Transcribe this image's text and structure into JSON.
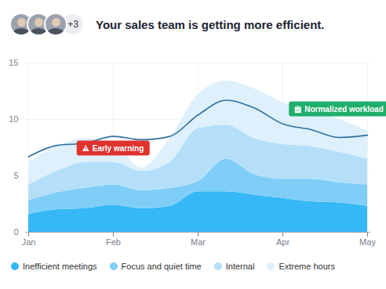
{
  "chart_data": {
    "type": "area",
    "title": "Your sales team is getting more efficient.",
    "badge": "+3",
    "stacked": true,
    "grid": true,
    "categories": [
      "Jan",
      null,
      null,
      "Feb",
      null,
      null,
      "Mar",
      null,
      null,
      "Apr",
      null,
      null,
      "May"
    ],
    "ylim": [
      0,
      15
    ],
    "yticks": [
      0,
      5,
      10,
      15
    ],
    "series": [
      {
        "name": "Inefficient meetings",
        "color": "#35b8f5",
        "values": [
          1.6,
          2.0,
          2.1,
          2.4,
          2.1,
          2.3,
          3.6,
          3.6,
          3.3,
          3.0,
          2.7,
          2.6,
          2.3
        ]
      },
      {
        "name": "Focus and quiet time",
        "color": "#7fcef7",
        "values": [
          1.2,
          1.5,
          1.8,
          1.8,
          1.6,
          1.6,
          0.9,
          2.9,
          1.8,
          1.7,
          2.0,
          1.8,
          1.9
        ]
      },
      {
        "name": "Internal",
        "color": "#b5dff9",
        "values": [
          1.4,
          1.9,
          2.3,
          2.0,
          1.7,
          2.3,
          4.7,
          3.0,
          3.2,
          3.1,
          2.9,
          2.7,
          2.3
        ]
      },
      {
        "name": "Extreme hours",
        "color": "#ddf0fc",
        "values": [
          2.0,
          2.2,
          2.1,
          1.7,
          0.3,
          2.1,
          3.0,
          3.9,
          4.4,
          3.7,
          3.3,
          2.9,
          2.5
        ]
      },
      {
        "type": "line",
        "color": "#2f6f9e",
        "values": [
          6.7,
          7.7,
          7.9,
          8.5,
          8.2,
          8.5,
          10.4,
          11.7,
          11.0,
          9.6,
          9.1,
          8.4,
          8.6
        ]
      }
    ],
    "annotations": [
      {
        "text": "Early warning",
        "index": 3,
        "y": 7.4,
        "color": "#e0332f"
      },
      {
        "text": "Normalized workload",
        "index": 11,
        "y": 10.9,
        "color": "#1fae6b"
      }
    ]
  }
}
